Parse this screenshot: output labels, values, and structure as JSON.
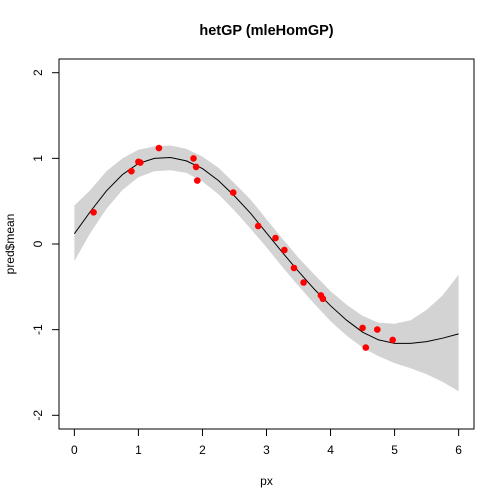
{
  "chart_data": {
    "type": "scatter",
    "title": "hetGP (mleHomGP)",
    "xlabel": "px",
    "ylabel": "pred$mean",
    "xlim": [
      -0.24,
      6.24
    ],
    "ylim": [
      -2.16,
      2.16
    ],
    "xticks": [
      0,
      1,
      2,
      3,
      4,
      5,
      6
    ],
    "yticks": [
      -2,
      -1,
      0,
      1,
      2
    ],
    "grid": false,
    "legend": "none",
    "colors": {
      "points": "#ff0000",
      "band": "#d3d3d3",
      "mean_line": "#000000",
      "box": "#000000"
    },
    "series": [
      {
        "kind": "points",
        "x": [
          0.3,
          0.89,
          1.0,
          1.03,
          1.32,
          1.86,
          1.9,
          1.92,
          2.48,
          2.87,
          3.14,
          3.28,
          3.43,
          3.58,
          3.85,
          3.88,
          4.5,
          4.55,
          4.73,
          4.97
        ],
        "y": [
          0.37,
          0.85,
          0.96,
          0.95,
          1.12,
          1.0,
          0.9,
          0.74,
          0.6,
          0.21,
          0.07,
          -0.07,
          -0.28,
          -0.45,
          -0.6,
          -0.64,
          -0.98,
          -1.21,
          -1.0,
          -1.12
        ]
      },
      {
        "kind": "line",
        "x": [
          0.0,
          0.25,
          0.5,
          0.75,
          1.0,
          1.25,
          1.5,
          1.75,
          2.0,
          2.25,
          2.5,
          2.75,
          3.0,
          3.25,
          3.5,
          3.75,
          4.0,
          4.25,
          4.5,
          4.75,
          5.0,
          5.25,
          5.5,
          5.75,
          6.0
        ],
        "y": [
          0.12,
          0.38,
          0.62,
          0.81,
          0.94,
          1.0,
          1.01,
          0.97,
          0.88,
          0.74,
          0.56,
          0.36,
          0.13,
          -0.1,
          -0.32,
          -0.53,
          -0.72,
          -0.89,
          -1.03,
          -1.12,
          -1.16,
          -1.16,
          -1.14,
          -1.1,
          -1.05
        ]
      },
      {
        "kind": "band",
        "x": [
          0.0,
          0.25,
          0.5,
          0.75,
          1.0,
          1.25,
          1.5,
          1.75,
          2.0,
          2.25,
          2.5,
          2.75,
          3.0,
          3.25,
          3.5,
          3.75,
          4.0,
          4.25,
          4.5,
          4.75,
          5.0,
          5.25,
          5.5,
          5.75,
          6.0
        ],
        "upper": [
          0.45,
          0.63,
          0.85,
          1.0,
          1.1,
          1.14,
          1.15,
          1.11,
          1.02,
          0.89,
          0.71,
          0.52,
          0.29,
          0.06,
          -0.16,
          -0.36,
          -0.55,
          -0.71,
          -0.84,
          -0.92,
          -0.93,
          -0.89,
          -0.77,
          -0.6,
          -0.36
        ],
        "lower": [
          -0.2,
          0.13,
          0.41,
          0.63,
          0.78,
          0.85,
          0.86,
          0.83,
          0.73,
          0.58,
          0.39,
          0.18,
          -0.04,
          -0.27,
          -0.49,
          -0.7,
          -0.9,
          -1.07,
          -1.21,
          -1.31,
          -1.39,
          -1.45,
          -1.52,
          -1.61,
          -1.72
        ]
      }
    ]
  }
}
